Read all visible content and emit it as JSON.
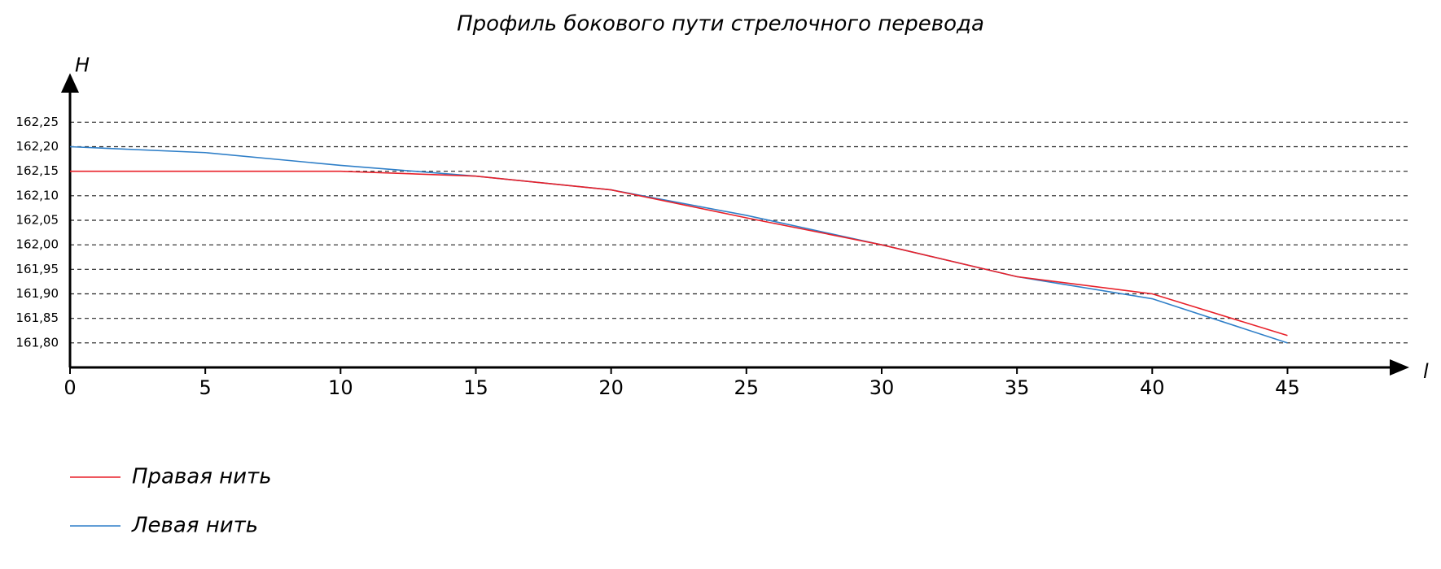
{
  "chart_data": {
    "type": "line",
    "title": "Профиль бокового пути стрелочного перевода",
    "x_label": "l",
    "y_label": "H",
    "x": [
      0,
      5,
      10,
      15,
      20,
      25,
      30,
      35,
      40,
      45
    ],
    "series": [
      {
        "name": "Правая нить",
        "color": "#e8212a",
        "values": [
          162.15,
          162.15,
          162.15,
          162.14,
          162.112,
          162.055,
          162.0,
          161.935,
          161.9,
          161.815
        ]
      },
      {
        "name": "Левая нить",
        "color": "#2f7fc8",
        "values": [
          162.2,
          162.188,
          162.162,
          162.14,
          162.112,
          162.06,
          162.0,
          161.935,
          161.89,
          161.8
        ]
      }
    ],
    "xlim": [
      0,
      49.5
    ],
    "ylim": [
      161.75,
      162.35
    ],
    "xticks": [
      0,
      5,
      10,
      15,
      20,
      25,
      30,
      35,
      40,
      45
    ],
    "yticks": [
      {
        "value": 161.8,
        "label": "161,80"
      },
      {
        "value": 161.85,
        "label": "161,85"
      },
      {
        "value": 161.9,
        "label": "161,90"
      },
      {
        "value": 161.95,
        "label": "161,95"
      },
      {
        "value": 162.0,
        "label": "162,00"
      },
      {
        "value": 162.05,
        "label": "162,05"
      },
      {
        "value": 162.1,
        "label": "162,10"
      },
      {
        "value": 162.15,
        "label": "162,15"
      },
      {
        "value": 162.2,
        "label": "162,20"
      },
      {
        "value": 162.25,
        "label": "162,25"
      }
    ],
    "grid": true
  }
}
